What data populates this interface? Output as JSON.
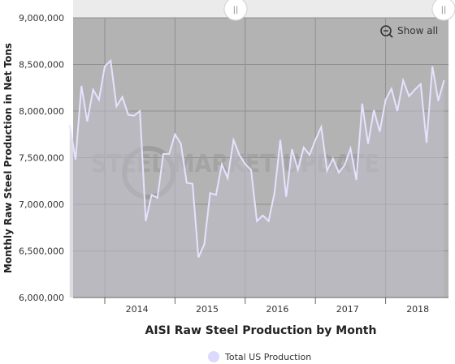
{
  "chart_data": {
    "type": "area",
    "x_start": "2013-07",
    "x_step": "month",
    "xlabel": "AISI Raw Steel Production by Month",
    "ylabel": "Monthly Raw Steel Production in Net Tons",
    "ylim": [
      6000000,
      9000000
    ],
    "yticks": [
      6000000,
      6500000,
      7000000,
      7500000,
      8000000,
      8500000,
      9000000
    ],
    "ytick_labels": [
      "6,000,000",
      "6,500,000",
      "7,000,000",
      "7,500,000",
      "8,000,000",
      "8,500,000",
      "9,000,000"
    ],
    "xticks": [
      "2014",
      "2015",
      "2016",
      "2017",
      "2018"
    ],
    "grid": true,
    "legend_position": "bottom",
    "series": [
      {
        "name": "Total US Production",
        "color": "#e4e0ff",
        "values": [
          7850000,
          7480000,
          8270000,
          7890000,
          8230000,
          8120000,
          8480000,
          8540000,
          8050000,
          8150000,
          7960000,
          7950000,
          8000000,
          6820000,
          7100000,
          7070000,
          7540000,
          7540000,
          7750000,
          7650000,
          7230000,
          7220000,
          6430000,
          6570000,
          7120000,
          7100000,
          7430000,
          7280000,
          7690000,
          7530000,
          7430000,
          7370000,
          6820000,
          6880000,
          6820000,
          7120000,
          7690000,
          7080000,
          7590000,
          7370000,
          7610000,
          7530000,
          7690000,
          7830000,
          7360000,
          7490000,
          7340000,
          7420000,
          7600000,
          7260000,
          8080000,
          7650000,
          8010000,
          7780000,
          8120000,
          8240000,
          8000000,
          8330000,
          8160000,
          8230000,
          8290000,
          7660000,
          8480000,
          8110000,
          8330000
        ]
      }
    ],
    "watermark": "STEEL MARKET UPDATE"
  },
  "controls": {
    "show_all_label": "Show all",
    "navigator_left_handle": "||",
    "navigator_right_handle": "||"
  },
  "colors": {
    "plot_bg": "#b3b3b3",
    "line": "#e6e2ff",
    "area_fill": "#c0beca",
    "legend_marker": "#dcd9ff"
  }
}
